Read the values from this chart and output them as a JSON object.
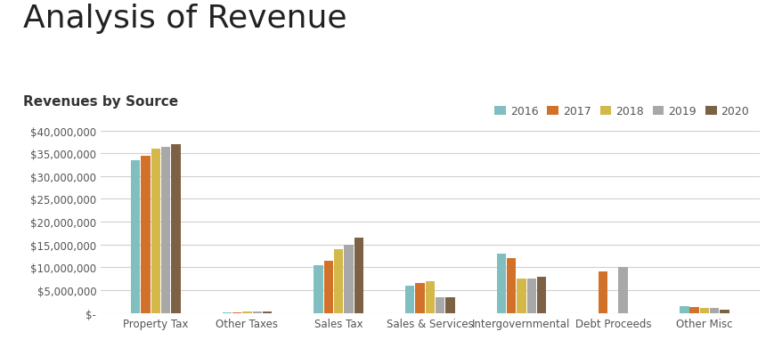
{
  "title": "Analysis of Revenue",
  "subtitle": "Revenues by Source",
  "categories": [
    "Property Tax",
    "Other Taxes",
    "Sales Tax",
    "Sales & Services",
    "Intergovernmental",
    "Debt Proceeds",
    "Other Misc"
  ],
  "years": [
    "2016",
    "2017",
    "2018",
    "2019",
    "2020"
  ],
  "colors": [
    "#7fbfbf",
    "#d2722a",
    "#d4b84a",
    "#a8a8a8",
    "#7d6145"
  ],
  "values": {
    "Property Tax": [
      33500000,
      34500000,
      36000000,
      36500000,
      37000000
    ],
    "Other Taxes": [
      100000,
      150000,
      350000,
      300000,
      400000
    ],
    "Sales Tax": [
      10500000,
      11500000,
      14000000,
      15000000,
      16500000
    ],
    "Sales & Services": [
      6000000,
      6500000,
      7000000,
      3500000,
      3500000
    ],
    "Intergovernmental": [
      13000000,
      12000000,
      7500000,
      7500000,
      8000000
    ],
    "Debt Proceeds": [
      0,
      9000000,
      0,
      10000000,
      0
    ],
    "Other Misc": [
      1500000,
      1200000,
      1100000,
      1000000,
      800000
    ]
  },
  "ylim": [
    0,
    40000000
  ],
  "yticks": [
    0,
    5000000,
    10000000,
    15000000,
    20000000,
    25000000,
    30000000,
    35000000,
    40000000
  ],
  "background_color": "#ffffff",
  "grid_color": "#d0d0d0",
  "title_fontsize": 26,
  "subtitle_fontsize": 11,
  "tick_fontsize": 8.5,
  "legend_fontsize": 9
}
